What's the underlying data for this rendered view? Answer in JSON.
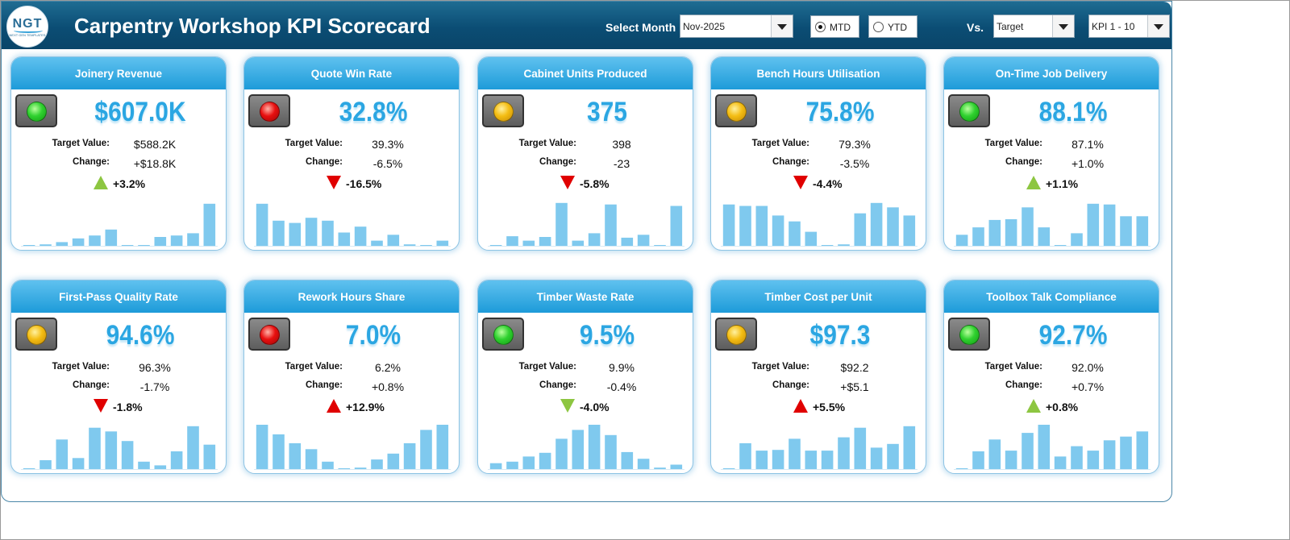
{
  "header": {
    "logo_text": "NGT",
    "logo_sub": "NEXT GEN TEMPLATES",
    "title": "Carpentry Workshop KPI Scorecard",
    "select_month_label": "Select Month",
    "month_value": "Nov-2025",
    "mtd_label": "MTD",
    "ytd_label": "YTD",
    "mtd_selected": true,
    "vs_label": "Vs.",
    "vs_value": "Target",
    "kpi_range_value": "KPI 1 - 10"
  },
  "labels": {
    "target": "Target Value:",
    "change": "Change:"
  },
  "colors": {
    "green": "#2fd12f",
    "red": "#e80f0f",
    "amber": "#f4bd13",
    "up_green": "#8dc641",
    "down_red": "#e00000",
    "up_red": "#e00000",
    "down_green": "#8dc641",
    "bar": "#7fc9ee"
  },
  "kpis": [
    {
      "name": "Joinery Revenue",
      "value": "$607.0K",
      "target": "$588.2K",
      "change": "+$18.8K",
      "pct": "+3.2%",
      "light": "green",
      "arrow": "up",
      "arrow_color": "up_green",
      "spark": [
        1,
        2,
        5,
        10,
        14,
        22,
        1,
        1,
        12,
        14,
        17,
        57
      ]
    },
    {
      "name": "Quote Win Rate",
      "value": "32.8%",
      "target": "39.3%",
      "change": "-6.5%",
      "pct": "-16.5%",
      "light": "red",
      "arrow": "down",
      "arrow_color": "down_red",
      "spark": [
        57,
        34,
        31,
        38,
        34,
        18,
        26,
        7,
        15,
        2,
        1,
        7
      ]
    },
    {
      "name": "Cabinet Units Produced",
      "value": "375",
      "target": "398",
      "change": "-23",
      "pct": "-5.8%",
      "light": "amber",
      "arrow": "down",
      "arrow_color": "down_red",
      "spark": [
        1,
        13,
        7,
        12,
        58,
        7,
        17,
        56,
        11,
        15,
        1,
        54
      ]
    },
    {
      "name": "Bench Hours Utilisation",
      "value": "75.8%",
      "target": "79.3%",
      "change": "-3.5%",
      "pct": "-4.4%",
      "light": "amber",
      "arrow": "down",
      "arrow_color": "down_red",
      "spark": [
        56,
        54,
        54,
        41,
        33,
        19,
        1,
        2,
        44,
        58,
        52,
        41
      ]
    },
    {
      "name": "On-Time Job Delivery",
      "value": "88.1%",
      "target": "87.1%",
      "change": "+1.0%",
      "pct": "+1.1%",
      "light": "green",
      "arrow": "up",
      "arrow_color": "up_green",
      "spark": [
        15,
        25,
        35,
        36,
        52,
        25,
        1,
        17,
        57,
        56,
        40,
        40
      ]
    },
    {
      "name": "First-Pass Quality Rate",
      "value": "94.6%",
      "target": "96.3%",
      "change": "-1.7%",
      "pct": "-1.8%",
      "light": "amber",
      "arrow": "down",
      "arrow_color": "down_red",
      "spark": [
        1,
        12,
        40,
        15,
        56,
        51,
        38,
        10,
        5,
        24,
        58,
        33
      ]
    },
    {
      "name": "Rework Hours Share",
      "value": "7.0%",
      "target": "6.2%",
      "change": "+0.8%",
      "pct": "+12.9%",
      "light": "red",
      "arrow": "up",
      "arrow_color": "up_red",
      "spark": [
        60,
        47,
        35,
        27,
        10,
        1,
        2,
        13,
        21,
        35,
        53,
        60
      ]
    },
    {
      "name": "Timber Waste Rate",
      "value": "9.5%",
      "target": "9.9%",
      "change": "-0.4%",
      "pct": "-4.0%",
      "light": "green",
      "arrow": "down",
      "arrow_color": "down_green",
      "spark": [
        8,
        10,
        17,
        22,
        41,
        53,
        60,
        46,
        23,
        14,
        2,
        6
      ]
    },
    {
      "name": "Timber Cost per Unit",
      "value": "$97.3",
      "target": "$92.2",
      "change": "+$5.1",
      "pct": "+5.5%",
      "light": "amber",
      "arrow": "up",
      "arrow_color": "up_red",
      "spark": [
        1,
        35,
        25,
        26,
        41,
        25,
        25,
        43,
        56,
        29,
        34,
        58
      ]
    },
    {
      "name": "Toolbox Talk Compliance",
      "value": "92.7%",
      "target": "92.0%",
      "change": "+0.7%",
      "pct": "+0.8%",
      "light": "green",
      "arrow": "up",
      "arrow_color": "up_green",
      "spark": [
        1,
        24,
        40,
        25,
        49,
        60,
        17,
        31,
        25,
        39,
        44,
        51
      ]
    }
  ]
}
